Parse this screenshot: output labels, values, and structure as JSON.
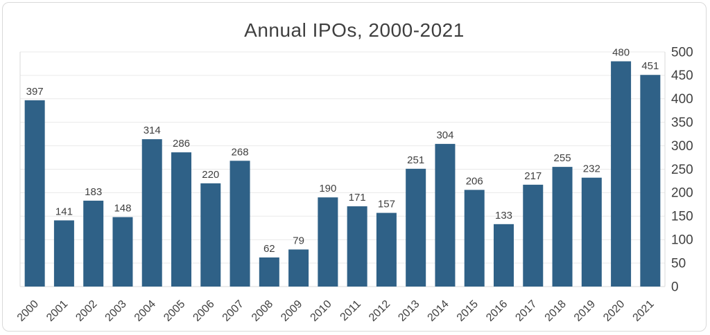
{
  "chart_data": {
    "type": "bar",
    "title": "Annual IPOs, 2000-2021",
    "categories": [
      "2000",
      "2001",
      "2002",
      "2003",
      "2004",
      "2005",
      "2006",
      "2007",
      "2008",
      "2009",
      "2010",
      "2011",
      "2012",
      "2013",
      "2014",
      "2015",
      "2016",
      "2017",
      "2018",
      "2019",
      "2020",
      "2021"
    ],
    "values": [
      397,
      141,
      183,
      148,
      314,
      286,
      220,
      268,
      62,
      79,
      190,
      171,
      157,
      251,
      304,
      206,
      133,
      217,
      255,
      232,
      480,
      451
    ],
    "xlabel": "",
    "ylabel": "",
    "ylim": [
      0,
      500
    ],
    "ytick_step": 50,
    "yticks": [
      0,
      50,
      100,
      150,
      200,
      250,
      300,
      350,
      400,
      450,
      500
    ],
    "yaxis_side": "right",
    "grid": true,
    "data_labels": true,
    "legend": "none",
    "colors": {
      "bar": "#2F6187",
      "gridline": "#E9E9E9",
      "axis_line": "#D9D9D9",
      "text": "#404040",
      "title_text": "#3F3F3F"
    }
  }
}
